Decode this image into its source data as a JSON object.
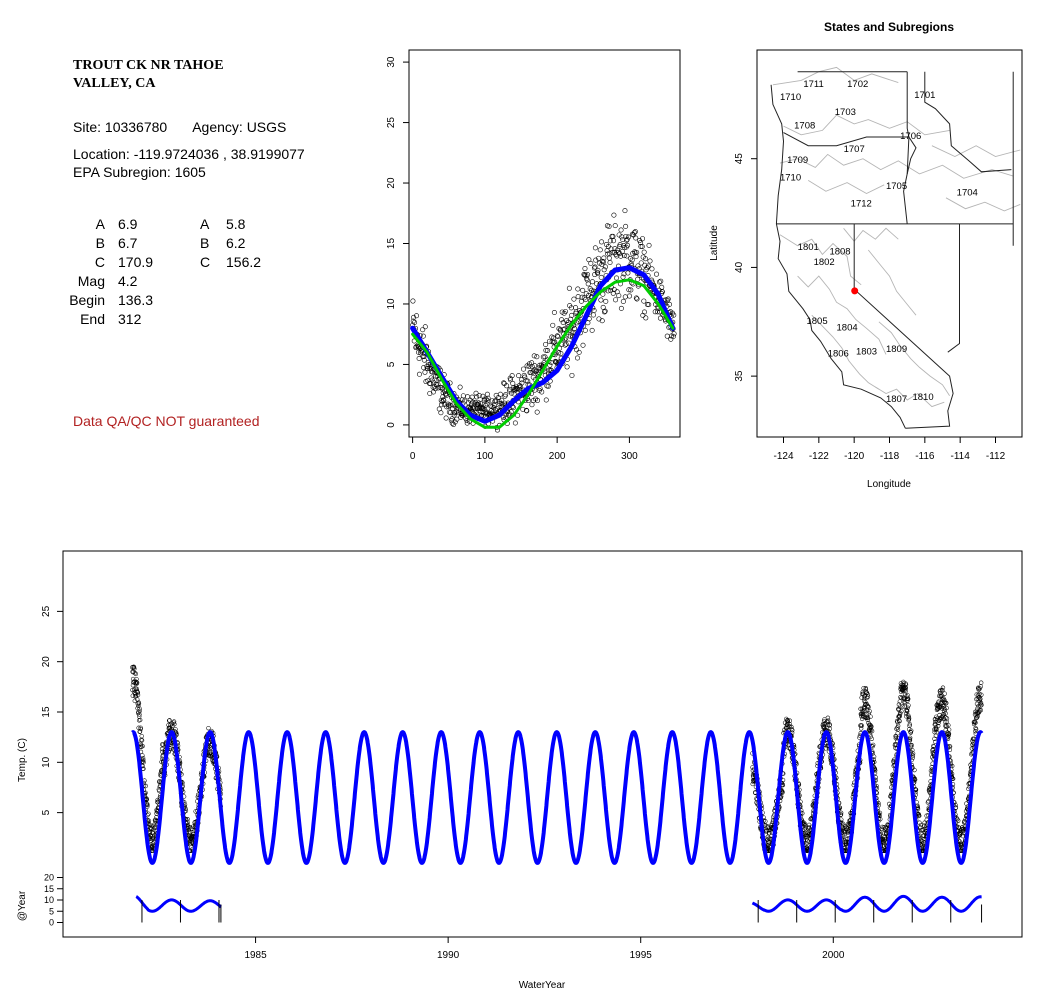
{
  "site": {
    "title_line1": "TROUT CK NR TAHOE",
    "title_line2": "VALLEY, CA",
    "site_text": "Site: 10336780",
    "agency_text": "Agency: USGS",
    "location_text": "Location: -119.9724036 , 38.9199077",
    "subregion_text": "EPA Subregion: 1605",
    "qa_text": "Data QA/QC NOT guaranteed"
  },
  "stats": {
    "left": [
      {
        "label": "A",
        "value": "6.9"
      },
      {
        "label": "B",
        "value": "6.7"
      },
      {
        "label": "C",
        "value": "170.9"
      },
      {
        "label": "Mag",
        "value": "4.2"
      },
      {
        "label": "Begin",
        "value": "136.3"
      },
      {
        "label": "End",
        "value": "312"
      }
    ],
    "right": [
      {
        "label": "A",
        "value": "5.8"
      },
      {
        "label": "B",
        "value": "6.2"
      },
      {
        "label": "C",
        "value": "156.2"
      }
    ]
  },
  "chart_data": [
    {
      "type": "scatter",
      "title": "",
      "xlabel": "",
      "ylabel": "",
      "xlim": [
        -5,
        370
      ],
      "ylim": [
        -1,
        31
      ],
      "x_ticks": [
        "0",
        "100",
        "200",
        "300"
      ],
      "x_tick_values": [
        0,
        100,
        200,
        300
      ],
      "y_ticks": [
        "0",
        "5",
        "10",
        "15",
        "20",
        "25",
        "30"
      ],
      "y_tick_values": [
        0,
        5,
        10,
        15,
        20,
        25,
        30
      ],
      "scatter_envelope": {
        "day": [
          0,
          15,
          30,
          45,
          60,
          75,
          90,
          105,
          120,
          135,
          150,
          165,
          180,
          195,
          210,
          225,
          240,
          255,
          270,
          285,
          300,
          315,
          330,
          345,
          360
        ],
        "low": [
          5,
          3,
          1.5,
          0.5,
          0,
          0,
          0,
          0,
          0,
          0,
          0.5,
          1,
          2,
          3,
          4,
          5,
          7,
          8,
          9,
          10,
          10,
          9.5,
          9,
          8,
          6
        ],
        "high": [
          11,
          8.5,
          6,
          4,
          3,
          2.5,
          2.5,
          2.5,
          3,
          4,
          5,
          6,
          7,
          9,
          10,
          12,
          14,
          15.5,
          17,
          17.5,
          18,
          16,
          14,
          12,
          10
        ]
      },
      "series": [
        {
          "name": "",
          "color": "#0000ff",
          "width": 5,
          "x": [
            0,
            20,
            40,
            60,
            80,
            100,
            120,
            140,
            160,
            180,
            200,
            220,
            240,
            260,
            280,
            300,
            320,
            340,
            360
          ],
          "y": [
            8,
            6,
            4,
            2,
            0.8,
            0.3,
            0.8,
            2,
            3,
            3.5,
            4.5,
            6.5,
            9,
            11.5,
            12.8,
            13,
            12.4,
            10.8,
            8
          ]
        },
        {
          "name": "",
          "color": "#00cc00",
          "width": 3,
          "x": [
            0,
            20,
            40,
            60,
            80,
            100,
            120,
            140,
            160,
            180,
            200,
            220,
            240,
            260,
            280,
            300,
            320,
            340,
            360
          ],
          "y": [
            7.5,
            6,
            3.8,
            1.8,
            0.5,
            -0.2,
            -0.2,
            0.8,
            2.5,
            4.5,
            6.5,
            8.3,
            9.8,
            11,
            11.8,
            12,
            11.5,
            10,
            8
          ]
        }
      ]
    },
    {
      "type": "map",
      "title": "States and Subregions",
      "xlabel": "Longitude",
      "ylabel": "Latitude",
      "xlim": [
        -125.5,
        -110.5
      ],
      "ylim": [
        32.2,
        50
      ],
      "x_ticks": [
        "-124",
        "-122",
        "-120",
        "-118",
        "-116",
        "-114",
        "-112"
      ],
      "x_tick_values": [
        -124,
        -122,
        -120,
        -118,
        -116,
        -114,
        -112
      ],
      "y_ticks": [
        "35",
        "40",
        "45"
      ],
      "y_tick_values": [
        35,
        40,
        45
      ],
      "regions": [
        {
          "label": "1702",
          "lon": -119.8,
          "lat": 48.3
        },
        {
          "label": "1711",
          "lon": -122.3,
          "lat": 48.3
        },
        {
          "label": "1710",
          "lon": -123.6,
          "lat": 47.7
        },
        {
          "label": "1701",
          "lon": -116.0,
          "lat": 47.8
        },
        {
          "label": "1703",
          "lon": -120.5,
          "lat": 47.0
        },
        {
          "label": "1708",
          "lon": -122.8,
          "lat": 46.4
        },
        {
          "label": "1706",
          "lon": -116.8,
          "lat": 45.9
        },
        {
          "label": "1707",
          "lon": -120.0,
          "lat": 45.3
        },
        {
          "label": "1709",
          "lon": -123.2,
          "lat": 44.8
        },
        {
          "label": "1710",
          "lon": -123.6,
          "lat": 44.0
        },
        {
          "label": "1705",
          "lon": -117.6,
          "lat": 43.6
        },
        {
          "label": "1704",
          "lon": -113.6,
          "lat": 43.3
        },
        {
          "label": "1712",
          "lon": -119.6,
          "lat": 42.8
        },
        {
          "label": "1801",
          "lon": -122.6,
          "lat": 40.8
        },
        {
          "label": "1808",
          "lon": -120.8,
          "lat": 40.6
        },
        {
          "label": "1802",
          "lon": -121.7,
          "lat": 40.1
        },
        {
          "label": "1805",
          "lon": -122.1,
          "lat": 37.4
        },
        {
          "label": "1804",
          "lon": -120.4,
          "lat": 37.1
        },
        {
          "label": "1806",
          "lon": -120.9,
          "lat": 35.9
        },
        {
          "label": "1803",
          "lon": -119.3,
          "lat": 36.0
        },
        {
          "label": "1809",
          "lon": -117.6,
          "lat": 36.1
        },
        {
          "label": "1810",
          "lon": -116.1,
          "lat": 33.9
        },
        {
          "label": "1807",
          "lon": -117.6,
          "lat": 33.8
        }
      ],
      "site_point": {
        "lon": -119.97,
        "lat": 38.92,
        "color": "#ff0000"
      }
    },
    {
      "type": "line",
      "title": "",
      "xlabel": "WaterYear",
      "ylabel": "Temp. (C)",
      "xlim": [
        1980.0,
        2004.9
      ],
      "ylim": [
        -1,
        31
      ],
      "x_ticks": [
        "1985",
        "1990",
        "1995",
        "2000"
      ],
      "x_tick_values": [
        1985,
        1990,
        1995,
        2000
      ],
      "y_ticks": [
        "5",
        "10",
        "15",
        "20",
        "25"
      ],
      "y_tick_values": [
        5,
        10,
        15,
        20,
        25
      ],
      "model": {
        "mean": 6.5,
        "amplitude": 6.5,
        "peak_offset": 0.82,
        "color": "#0000ff",
        "start": 1981.8,
        "end": 2003.85
      },
      "observed_periods": [
        [
          1981.8,
          1984.1
        ],
        [
          1997.9,
          2003.85
        ]
      ],
      "observed_peaks": [
        18,
        13,
        12,
        10,
        13,
        13,
        16,
        17,
        16,
        16.5
      ]
    },
    {
      "type": "line",
      "title": "",
      "xlabel": "",
      "ylabel": "@Year",
      "ylim": [
        -2,
        22
      ],
      "y_ticks": [
        "0",
        "5",
        "10",
        "15",
        "20"
      ],
      "y_tick_values": [
        0,
        5,
        10,
        15,
        20
      ],
      "segments": [
        {
          "start": 1981.9,
          "end": 1984.1
        },
        {
          "start": 1997.9,
          "end": 2003.85
        }
      ],
      "color": "#0000ff"
    }
  ]
}
